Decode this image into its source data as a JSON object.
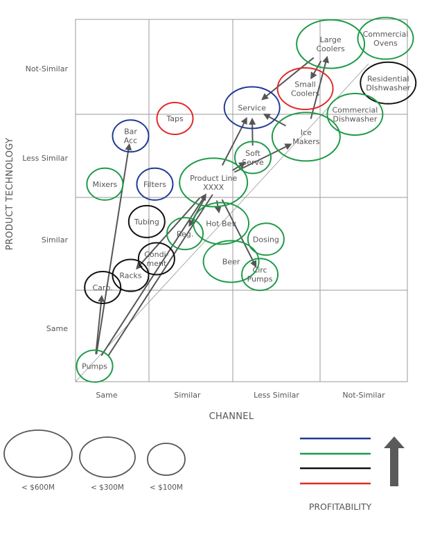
{
  "chart_data": {
    "type": "bubble",
    "title": "",
    "xlabel": "CHANNEL",
    "ylabel": "PRODUCT TECHNOLOGY",
    "x_categories": [
      "Same",
      "Similar",
      "Less Similar",
      "Not-Similar"
    ],
    "y_categories": [
      "Same",
      "Similar",
      "Less Similar",
      "Not-Similar"
    ],
    "xlim": [
      0,
      4
    ],
    "ylim": [
      0,
      4
    ],
    "grid": true,
    "diagonal_reference_line": true,
    "colors": {
      "blue": "#1f3a93",
      "green": "#1e9a48",
      "black": "#111111",
      "red": "#e02a2a",
      "arrow": "#555555",
      "grid": "#9a9a9a"
    },
    "size_classes": [
      {
        "id": "large",
        "label": "< $600M"
      },
      {
        "id": "medium",
        "label": "< $300M"
      },
      {
        "id": "small",
        "label": "< $100M"
      }
    ],
    "bubbles": [
      {
        "id": "large_coolers",
        "lines": [
          "Large",
          "Coolers"
        ],
        "x": 3.12,
        "y": 3.74,
        "size": "large",
        "color": "green"
      },
      {
        "id": "commercial_ovens",
        "lines": [
          "Commercial",
          "Ovens"
        ],
        "x": 3.75,
        "y": 3.8,
        "size": "medium",
        "color": "green"
      },
      {
        "id": "residential_dishwasher",
        "lines": [
          "Residential",
          "DIshwasher"
        ],
        "x": 3.78,
        "y": 3.33,
        "size": "medium",
        "color": "black"
      },
      {
        "id": "small_coolers",
        "lines": [
          "Small",
          "Coolers"
        ],
        "x": 2.83,
        "y": 3.27,
        "size": "medium",
        "color": "red"
      },
      {
        "id": "service",
        "lines": [
          "Service"
        ],
        "x": 2.22,
        "y": 3.07,
        "size": "medium",
        "color": "blue"
      },
      {
        "id": "commercial_dishwasher",
        "lines": [
          "Commercial",
          "Dishwasher"
        ],
        "x": 3.4,
        "y": 3.0,
        "size": "medium",
        "color": "green"
      },
      {
        "id": "ice_makers",
        "lines": [
          "Ice",
          "Makers"
        ],
        "x": 2.84,
        "y": 2.73,
        "size": "large",
        "color": "green"
      },
      {
        "id": "taps",
        "lines": [
          "Taps"
        ],
        "x": 1.31,
        "y": 2.95,
        "size": "small",
        "color": "red"
      },
      {
        "id": "bar_acc",
        "lines": [
          "Bar",
          "Acc"
        ],
        "x": 0.75,
        "y": 2.74,
        "size": "small",
        "color": "blue"
      },
      {
        "id": "soft_serve",
        "lines": [
          "Soft",
          "Serve"
        ],
        "x": 2.23,
        "y": 2.48,
        "size": "small",
        "color": "green"
      },
      {
        "id": "mixers",
        "lines": [
          "Mixers"
        ],
        "x": 0.4,
        "y": 2.16,
        "size": "small",
        "color": "green"
      },
      {
        "id": "filters",
        "lines": [
          "Filters"
        ],
        "x": 1.07,
        "y": 2.16,
        "size": "small",
        "color": "blue"
      },
      {
        "id": "product_line",
        "lines": [
          "Product Line",
          "XXXX"
        ],
        "x": 1.77,
        "y": 2.18,
        "size": "large",
        "color": "green"
      },
      {
        "id": "tubing",
        "lines": [
          "Tubing"
        ],
        "x": 0.97,
        "y": 1.74,
        "size": "small",
        "color": "black"
      },
      {
        "id": "reg",
        "lines": [
          "Reg."
        ],
        "x": 1.43,
        "y": 1.61,
        "size": "small",
        "color": "green"
      },
      {
        "id": "hot_bev",
        "lines": [
          "Hot Bev"
        ],
        "x": 1.86,
        "y": 1.72,
        "size": "medium",
        "color": "green"
      },
      {
        "id": "dosing",
        "lines": [
          "Dosing"
        ],
        "x": 2.38,
        "y": 1.55,
        "size": "small",
        "color": "green"
      },
      {
        "id": "condiment",
        "lines": [
          "Condi-",
          "ment"
        ],
        "x": 1.09,
        "y": 1.34,
        "size": "small",
        "color": "black"
      },
      {
        "id": "beer",
        "lines": [
          "Beer"
        ],
        "x": 1.98,
        "y": 1.31,
        "size": "medium",
        "color": "green"
      },
      {
        "id": "racks",
        "lines": [
          "Racks"
        ],
        "x": 0.75,
        "y": 1.16,
        "size": "small",
        "color": "black"
      },
      {
        "id": "circ_pumps",
        "lines": [
          "Circ",
          "Pumps"
        ],
        "x": 2.31,
        "y": 1.17,
        "size": "small",
        "color": "green"
      },
      {
        "id": "carb",
        "lines": [
          "Carb."
        ],
        "x": 0.37,
        "y": 1.03,
        "size": "small",
        "color": "black"
      },
      {
        "id": "pumps",
        "lines": [
          "Pumps"
        ],
        "x": 0.26,
        "y": 0.17,
        "size": "small",
        "color": "green"
      }
    ],
    "arrows": [
      {
        "from": "pumps",
        "to": "carb",
        "head": true
      },
      {
        "from": "pumps",
        "to": "bar_acc",
        "head": true
      },
      {
        "from": "pumps",
        "to": "product_line",
        "head": true
      },
      {
        "from": "pumps",
        "to": "product_line",
        "head": false
      },
      {
        "from": "product_line",
        "to": "racks",
        "head": true
      },
      {
        "from": "product_line",
        "to": "service",
        "head": true
      },
      {
        "from": "product_line",
        "to": "soft_serve",
        "head": true
      },
      {
        "from": "product_line",
        "to": "ice_makers",
        "head": true
      },
      {
        "from": "product_line",
        "to": "reg",
        "head": true
      },
      {
        "from": "product_line",
        "to": "hot_bev",
        "head": true
      },
      {
        "from": "product_line",
        "to": "circ_pumps",
        "head": true
      },
      {
        "from": "soft_serve",
        "to": "service",
        "head": true
      },
      {
        "from": "ice_makers",
        "to": "service",
        "head": true
      },
      {
        "from": "ice_makers",
        "to": "large_coolers",
        "head": true
      },
      {
        "from": "large_coolers",
        "to": "service",
        "head": true
      },
      {
        "from": "large_coolers",
        "to": "small_coolers",
        "head": true
      }
    ],
    "profitability_legend": {
      "title": "PROFITABILITY",
      "order_high_to_low": [
        "blue",
        "green",
        "black",
        "red"
      ]
    }
  }
}
